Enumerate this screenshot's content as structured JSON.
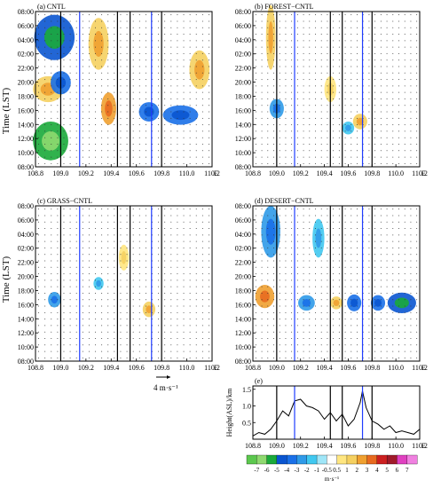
{
  "figure": {
    "time_ylabel": "Time (LST)",
    "height_ylabel": "Height(ASL)/km",
    "reference_vector_label": "4 m·s⁻¹",
    "colorbar_unit": "m·s⁻¹",
    "x_unit_suffix": "E"
  },
  "chart_data": [
    {
      "type": "heatmap",
      "panel": "a",
      "title": "(a) CNTL",
      "x_ticks": [
        "108.8",
        "109.0",
        "109.2",
        "109.4",
        "109.6",
        "109.8",
        "110.0",
        "110.2"
      ],
      "y_ticks": [
        "08:00",
        "10:00",
        "12:00",
        "14:00",
        "16:00",
        "18:00",
        "20:00",
        "22:00",
        "02:00",
        "04:00",
        "06:00",
        "08:00"
      ],
      "xlim": [
        108.8,
        110.2
      ],
      "ylim_hours": [
        0,
        24
      ],
      "black_lines_lon": [
        109.0,
        109.45,
        109.55,
        109.8
      ],
      "blue_lines_lon": [
        109.15,
        109.72
      ],
      "blobs": [
        {
          "lon": 108.95,
          "hour": 20,
          "value": -4,
          "dlon": 0.16,
          "dhour": 3.5
        },
        {
          "lon": 108.92,
          "hour": 4,
          "value": -5,
          "dlon": 0.14,
          "dhour": 3
        },
        {
          "lon": 108.9,
          "hour": 12,
          "value": 2,
          "dlon": 0.12,
          "dhour": 2
        },
        {
          "lon": 109.0,
          "hour": 13,
          "value": -3,
          "dlon": 0.08,
          "dhour": 1.8
        },
        {
          "lon": 109.38,
          "hour": 9,
          "value": 3,
          "dlon": 0.06,
          "dhour": 2.5
        },
        {
          "lon": 109.7,
          "hour": 8.5,
          "value": -3,
          "dlon": 0.08,
          "dhour": 1.5
        },
        {
          "lon": 109.95,
          "hour": 8,
          "value": -3,
          "dlon": 0.14,
          "dhour": 1.5
        },
        {
          "lon": 110.1,
          "hour": 15,
          "value": 2,
          "dlon": 0.08,
          "dhour": 3
        },
        {
          "lon": 109.3,
          "hour": 19,
          "value": 2,
          "dlon": 0.08,
          "dhour": 4
        }
      ]
    },
    {
      "type": "heatmap",
      "panel": "b",
      "title": "(b) FOREST−CNTL",
      "x_ticks": [
        "108.8",
        "109.0",
        "109.2",
        "109.4",
        "109.6",
        "109.8",
        "110.0",
        "110.2"
      ],
      "y_ticks": [
        "08:00",
        "10:00",
        "12:00",
        "14:00",
        "16:00",
        "18:00",
        "20:00",
        "22:00",
        "02:00",
        "04:00",
        "06:00",
        "08:00"
      ],
      "xlim": [
        108.8,
        110.2
      ],
      "ylim_hours": [
        0,
        24
      ],
      "black_lines_lon": [
        109.0,
        109.45,
        109.55,
        109.8
      ],
      "blue_lines_lon": [
        109.15,
        109.72
      ],
      "blobs": [
        {
          "lon": 108.95,
          "hour": 20,
          "value": 2,
          "dlon": 0.04,
          "dhour": 5
        },
        {
          "lon": 109.0,
          "hour": 9,
          "value": -2,
          "dlon": 0.06,
          "dhour": 1.5
        },
        {
          "lon": 109.7,
          "hour": 7,
          "value": 2,
          "dlon": 0.06,
          "dhour": 1.2
        },
        {
          "lon": 109.6,
          "hour": 6,
          "value": -1.5,
          "dlon": 0.05,
          "dhour": 1
        },
        {
          "lon": 109.45,
          "hour": 12,
          "value": 1,
          "dlon": 0.05,
          "dhour": 2
        }
      ]
    },
    {
      "type": "heatmap",
      "panel": "c",
      "title": "(c) GRASS−CNTL",
      "x_ticks": [
        "108.8",
        "109.0",
        "109.2",
        "109.4",
        "109.6",
        "109.8",
        "110.0",
        "110.2"
      ],
      "y_ticks": [
        "08:00",
        "10:00",
        "12:00",
        "14:00",
        "16:00",
        "18:00",
        "20:00",
        "22:00",
        "02:00",
        "04:00",
        "06:00",
        "08:00"
      ],
      "xlim": [
        108.8,
        110.2
      ],
      "ylim_hours": [
        0,
        24
      ],
      "black_lines_lon": [
        109.0,
        109.45,
        109.55,
        109.8
      ],
      "blue_lines_lon": [
        109.15,
        109.72
      ],
      "blobs": [
        {
          "lon": 108.95,
          "hour": 9.5,
          "value": -2,
          "dlon": 0.05,
          "dhour": 1.2
        },
        {
          "lon": 109.7,
          "hour": 8,
          "value": 2,
          "dlon": 0.05,
          "dhour": 1.2
        },
        {
          "lon": 109.5,
          "hour": 16,
          "value": 1,
          "dlon": 0.04,
          "dhour": 2
        },
        {
          "lon": 109.3,
          "hour": 12,
          "value": -1.5,
          "dlon": 0.04,
          "dhour": 1
        }
      ]
    },
    {
      "type": "heatmap",
      "panel": "d",
      "title": "(d) DESERT−CNTL",
      "x_ticks": [
        "108.8",
        "109.0",
        "109.2",
        "109.4",
        "109.6",
        "109.8",
        "110.0",
        "110.2"
      ],
      "y_ticks": [
        "08:00",
        "10:00",
        "12:00",
        "14:00",
        "16:00",
        "18:00",
        "20:00",
        "22:00",
        "02:00",
        "04:00",
        "06:00",
        "08:00"
      ],
      "xlim": [
        108.8,
        110.2
      ],
      "ylim_hours": [
        0,
        24
      ],
      "black_lines_lon": [
        109.0,
        109.45,
        109.55,
        109.8
      ],
      "blue_lines_lon": [
        109.15,
        109.72
      ],
      "blobs": [
        {
          "lon": 108.9,
          "hour": 10,
          "value": 3,
          "dlon": 0.08,
          "dhour": 1.8
        },
        {
          "lon": 108.95,
          "hour": 20,
          "value": -2,
          "dlon": 0.08,
          "dhour": 4
        },
        {
          "lon": 109.25,
          "hour": 9,
          "value": -2,
          "dlon": 0.07,
          "dhour": 1.2
        },
        {
          "lon": 109.5,
          "hour": 9,
          "value": 2,
          "dlon": 0.05,
          "dhour": 1
        },
        {
          "lon": 109.65,
          "hour": 9,
          "value": -3,
          "dlon": 0.06,
          "dhour": 1.3
        },
        {
          "lon": 110.05,
          "hour": 9,
          "value": -4,
          "dlon": 0.12,
          "dhour": 1.6
        },
        {
          "lon": 109.85,
          "hour": 9,
          "value": -3,
          "dlon": 0.06,
          "dhour": 1.2
        },
        {
          "lon": 109.35,
          "hour": 19,
          "value": -1.5,
          "dlon": 0.05,
          "dhour": 3
        }
      ]
    },
    {
      "type": "line",
      "panel": "e",
      "title": "(e)",
      "x_ticks": [
        "108.8",
        "109.0",
        "109.2",
        "109.4",
        "109.6",
        "109.8",
        "110.0",
        "110.2"
      ],
      "y_ticks": [
        "0.5",
        "1.0",
        "1.5"
      ],
      "xlim": [
        108.8,
        110.2
      ],
      "ylim": [
        0,
        1.6
      ],
      "black_lines_lon": [
        109.0,
        109.45,
        109.55,
        109.8
      ],
      "blue_lines_lon": [
        109.15,
        109.72
      ],
      "x": [
        108.8,
        108.85,
        108.9,
        108.95,
        109.0,
        109.05,
        109.1,
        109.15,
        109.2,
        109.25,
        109.3,
        109.35,
        109.4,
        109.45,
        109.5,
        109.55,
        109.6,
        109.65,
        109.7,
        109.72,
        109.75,
        109.8,
        109.85,
        109.9,
        109.95,
        110.0,
        110.05,
        110.1,
        110.15,
        110.2
      ],
      "y": [
        0.1,
        0.2,
        0.15,
        0.3,
        0.55,
        0.85,
        0.7,
        1.15,
        1.2,
        1.0,
        0.95,
        0.85,
        0.6,
        0.8,
        0.55,
        0.75,
        0.4,
        0.6,
        1.1,
        1.45,
        0.95,
        0.55,
        0.45,
        0.3,
        0.4,
        0.2,
        0.25,
        0.2,
        0.15,
        0.3
      ]
    }
  ],
  "colorbar": {
    "labels": [
      "-7",
      "-6",
      "-5",
      "-4",
      "-3",
      "-2",
      "-1",
      "-0.5",
      "0.5",
      "1",
      "2",
      "3",
      "4",
      "5",
      "6",
      "7"
    ],
    "colors": [
      "#5cc84e",
      "#8fd970",
      "#1aaa3a",
      "#0a55d0",
      "#1a70e8",
      "#2f9ae8",
      "#40c8f0",
      "#9fe6f8",
      "#ffffff",
      "#ffe680",
      "#f5d060",
      "#f0a030",
      "#e86a20",
      "#cc2020",
      "#a01a2a",
      "#e040c0",
      "#f080e0"
    ]
  }
}
